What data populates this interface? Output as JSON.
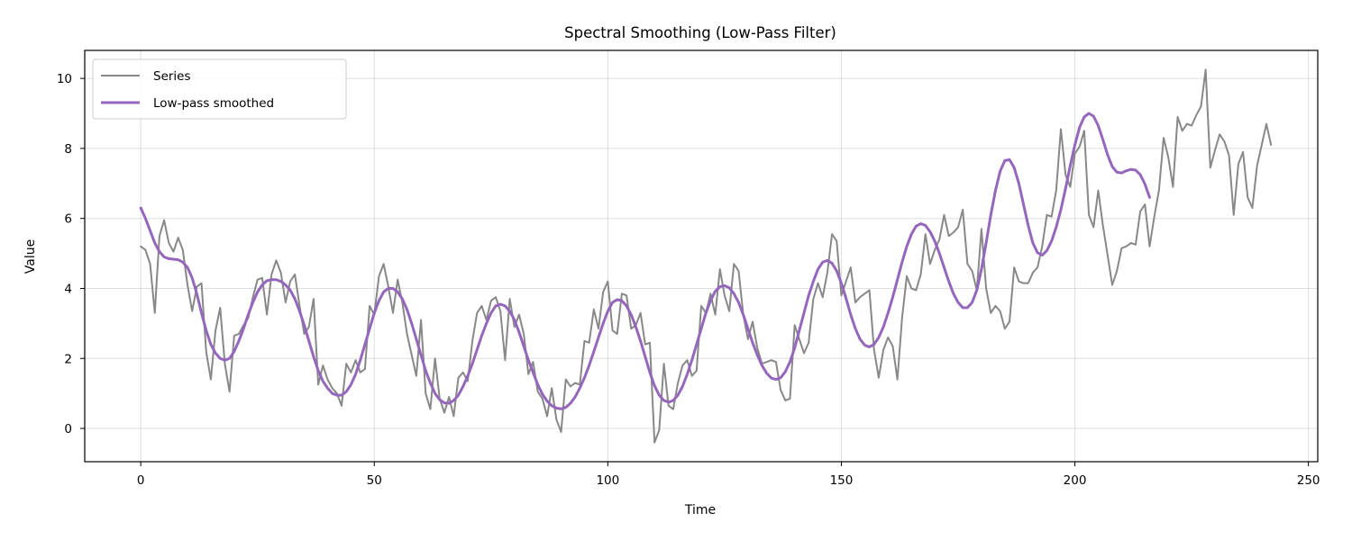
{
  "chart_data": {
    "type": "line",
    "title": "Spectral Smoothing (Low-Pass Filter)",
    "xlabel": "Time",
    "ylabel": "Value",
    "xlim": [
      -12,
      252
    ],
    "ylim": [
      -0.95,
      10.8
    ],
    "xticks": [
      0,
      50,
      100,
      150,
      200,
      250
    ],
    "yticks": [
      0,
      2,
      4,
      6,
      8,
      10
    ],
    "grid": true,
    "legend_position": "top-left",
    "series": [
      {
        "name": "Series",
        "color": "#888888",
        "x_start": 0,
        "x_step": 1,
        "values": [
          5.2,
          5.1,
          4.7,
          3.3,
          5.5,
          5.95,
          5.3,
          5.05,
          5.45,
          5.1,
          4.1,
          3.35,
          4.05,
          4.15,
          2.2,
          1.4,
          2.8,
          3.45,
          1.85,
          1.05,
          2.65,
          2.7,
          2.95,
          3.15,
          3.75,
          4.25,
          4.3,
          3.25,
          4.4,
          4.8,
          4.45,
          3.6,
          4.2,
          4.4,
          3.5,
          2.7,
          2.9,
          3.7,
          1.25,
          1.8,
          1.4,
          1.15,
          1.0,
          0.65,
          1.85,
          1.6,
          1.95,
          1.6,
          1.7,
          3.5,
          3.25,
          4.35,
          4.7,
          4.05,
          3.3,
          4.25,
          3.6,
          2.7,
          2.1,
          1.5,
          3.1,
          1.0,
          0.55,
          2.0,
          0.85,
          0.45,
          0.9,
          0.35,
          1.45,
          1.6,
          1.35,
          2.5,
          3.3,
          3.5,
          3.1,
          3.65,
          3.75,
          3.35,
          1.95,
          3.7,
          2.9,
          3.25,
          2.7,
          1.55,
          1.9,
          1.05,
          0.85,
          0.35,
          1.15,
          0.25,
          -0.1,
          1.4,
          1.2,
          1.3,
          1.25,
          2.5,
          2.45,
          3.4,
          2.85,
          3.9,
          4.2,
          2.8,
          2.7,
          3.85,
          3.8,
          2.85,
          2.95,
          3.3,
          2.4,
          2.45,
          -0.4,
          -0.05,
          1.85,
          0.65,
          0.55,
          1.3,
          1.8,
          1.95,
          1.5,
          1.65,
          3.5,
          3.3,
          3.85,
          3.25,
          4.55,
          3.8,
          3.35,
          4.7,
          4.5,
          3.25,
          2.55,
          3.05,
          2.3,
          1.85,
          1.9,
          1.95,
          1.9,
          1.1,
          0.8,
          0.85,
          2.95,
          2.55,
          2.15,
          2.45,
          3.7,
          4.15,
          3.75,
          4.45,
          5.55,
          5.35,
          3.8,
          4.2,
          4.6,
          3.6,
          3.75,
          3.85,
          3.95,
          2.25,
          1.45,
          2.25,
          2.6,
          2.35,
          1.4,
          3.15,
          4.35,
          4.0,
          3.95,
          4.4,
          5.55,
          4.7,
          5.1,
          5.4,
          6.1,
          5.5,
          5.6,
          5.75,
          6.25,
          4.7,
          4.5,
          3.95,
          5.7,
          4.0,
          3.3,
          3.5,
          3.35,
          2.85,
          3.05,
          4.6,
          4.2,
          4.15,
          4.15,
          4.45,
          4.6,
          5.2,
          6.1,
          6.05,
          6.8,
          8.55,
          7.25,
          6.9,
          7.85,
          8.05,
          8.5,
          6.1,
          5.75,
          6.8,
          5.8,
          4.95,
          4.1,
          4.5,
          5.15,
          5.2,
          5.3,
          5.25,
          6.2,
          6.4,
          5.2,
          6.05,
          6.8,
          8.3,
          7.75,
          6.9,
          8.9,
          8.5,
          8.7,
          8.65,
          8.95,
          9.2,
          10.25,
          7.45,
          7.95,
          8.4,
          8.2,
          7.8,
          6.1,
          7.55,
          7.9,
          6.6,
          6.3,
          7.5,
          8.1,
          8.7,
          8.1
        ]
      },
      {
        "name": "Low-pass smoothed",
        "color": "#9467bd",
        "points": [
          [
            0,
            6.3
          ],
          [
            1,
            6.0
          ],
          [
            2,
            5.65
          ],
          [
            3,
            5.3
          ],
          [
            4,
            5.05
          ],
          [
            5,
            4.9
          ],
          [
            6,
            4.85
          ],
          [
            8,
            4.82
          ],
          [
            9,
            4.75
          ],
          [
            10,
            4.6
          ],
          [
            11,
            4.3
          ],
          [
            12,
            3.85
          ],
          [
            13,
            3.3
          ],
          [
            14,
            2.8
          ],
          [
            15,
            2.4
          ],
          [
            16,
            2.15
          ],
          [
            17,
            2.0
          ],
          [
            18,
            1.95
          ],
          [
            19,
            2.0
          ],
          [
            20,
            2.2
          ],
          [
            21,
            2.5
          ],
          [
            22,
            2.85
          ],
          [
            23,
            3.25
          ],
          [
            24,
            3.6
          ],
          [
            25,
            3.9
          ],
          [
            26,
            4.1
          ],
          [
            27,
            4.22
          ],
          [
            28,
            4.25
          ],
          [
            29,
            4.25
          ],
          [
            30,
            4.2
          ],
          [
            31,
            4.1
          ],
          [
            32,
            3.95
          ],
          [
            33,
            3.7
          ],
          [
            34,
            3.35
          ],
          [
            35,
            2.95
          ],
          [
            36,
            2.5
          ],
          [
            37,
            2.05
          ],
          [
            38,
            1.65
          ],
          [
            39,
            1.35
          ],
          [
            40,
            1.15
          ],
          [
            41,
            1.0
          ],
          [
            42,
            0.95
          ],
          [
            43,
            0.95
          ],
          [
            44,
            1.05
          ],
          [
            45,
            1.25
          ],
          [
            46,
            1.55
          ],
          [
            47,
            1.95
          ],
          [
            48,
            2.4
          ],
          [
            49,
            2.85
          ],
          [
            50,
            3.3
          ],
          [
            51,
            3.65
          ],
          [
            52,
            3.9
          ],
          [
            53,
            4.0
          ],
          [
            54,
            4.0
          ],
          [
            55,
            3.9
          ],
          [
            56,
            3.7
          ],
          [
            57,
            3.4
          ],
          [
            58,
            3.0
          ],
          [
            59,
            2.55
          ],
          [
            60,
            2.1
          ],
          [
            61,
            1.65
          ],
          [
            62,
            1.3
          ],
          [
            63,
            1.0
          ],
          [
            64,
            0.82
          ],
          [
            65,
            0.73
          ],
          [
            66,
            0.72
          ],
          [
            67,
            0.8
          ],
          [
            68,
            0.95
          ],
          [
            69,
            1.2
          ],
          [
            70,
            1.5
          ],
          [
            71,
            1.85
          ],
          [
            72,
            2.25
          ],
          [
            73,
            2.65
          ],
          [
            74,
            3.0
          ],
          [
            75,
            3.3
          ],
          [
            76,
            3.5
          ],
          [
            77,
            3.55
          ],
          [
            78,
            3.5
          ],
          [
            79,
            3.35
          ],
          [
            80,
            3.1
          ],
          [
            81,
            2.75
          ],
          [
            82,
            2.35
          ],
          [
            83,
            1.95
          ],
          [
            84,
            1.6
          ],
          [
            85,
            1.25
          ],
          [
            86,
            0.98
          ],
          [
            87,
            0.78
          ],
          [
            88,
            0.65
          ],
          [
            89,
            0.58
          ],
          [
            90,
            0.56
          ],
          [
            91,
            0.6
          ],
          [
            92,
            0.72
          ],
          [
            93,
            0.9
          ],
          [
            94,
            1.15
          ],
          [
            95,
            1.45
          ],
          [
            96,
            1.8
          ],
          [
            97,
            2.2
          ],
          [
            98,
            2.6
          ],
          [
            99,
            3.0
          ],
          [
            100,
            3.35
          ],
          [
            101,
            3.6
          ],
          [
            102,
            3.68
          ],
          [
            103,
            3.65
          ],
          [
            104,
            3.5
          ],
          [
            105,
            3.25
          ],
          [
            106,
            2.9
          ],
          [
            107,
            2.5
          ],
          [
            108,
            2.05
          ],
          [
            109,
            1.6
          ],
          [
            110,
            1.22
          ],
          [
            111,
            0.95
          ],
          [
            112,
            0.8
          ],
          [
            113,
            0.75
          ],
          [
            114,
            0.8
          ],
          [
            115,
            0.95
          ],
          [
            116,
            1.2
          ],
          [
            117,
            1.55
          ],
          [
            118,
            1.95
          ],
          [
            119,
            2.4
          ],
          [
            120,
            2.85
          ],
          [
            121,
            3.3
          ],
          [
            122,
            3.65
          ],
          [
            123,
            3.92
          ],
          [
            124,
            4.05
          ],
          [
            125,
            4.08
          ],
          [
            126,
            4.02
          ],
          [
            127,
            3.85
          ],
          [
            128,
            3.6
          ],
          [
            129,
            3.25
          ],
          [
            130,
            2.85
          ],
          [
            131,
            2.45
          ],
          [
            132,
            2.1
          ],
          [
            133,
            1.8
          ],
          [
            134,
            1.58
          ],
          [
            135,
            1.44
          ],
          [
            136,
            1.4
          ],
          [
            137,
            1.45
          ],
          [
            138,
            1.62
          ],
          [
            139,
            1.9
          ],
          [
            140,
            2.3
          ],
          [
            141,
            2.8
          ],
          [
            142,
            3.3
          ],
          [
            143,
            3.8
          ],
          [
            144,
            4.2
          ],
          [
            145,
            4.55
          ],
          [
            146,
            4.75
          ],
          [
            147,
            4.8
          ],
          [
            148,
            4.72
          ],
          [
            149,
            4.5
          ],
          [
            150,
            4.15
          ],
          [
            151,
            3.72
          ],
          [
            152,
            3.25
          ],
          [
            153,
            2.85
          ],
          [
            154,
            2.55
          ],
          [
            155,
            2.38
          ],
          [
            156,
            2.33
          ],
          [
            157,
            2.4
          ],
          [
            158,
            2.6
          ],
          [
            159,
            2.9
          ],
          [
            160,
            3.3
          ],
          [
            161,
            3.75
          ],
          [
            162,
            4.25
          ],
          [
            163,
            4.75
          ],
          [
            164,
            5.2
          ],
          [
            165,
            5.55
          ],
          [
            166,
            5.78
          ],
          [
            167,
            5.85
          ],
          [
            168,
            5.8
          ],
          [
            169,
            5.62
          ],
          [
            170,
            5.35
          ],
          [
            171,
            5.0
          ],
          [
            172,
            4.6
          ],
          [
            173,
            4.2
          ],
          [
            174,
            3.85
          ],
          [
            175,
            3.6
          ],
          [
            176,
            3.45
          ],
          [
            177,
            3.45
          ],
          [
            178,
            3.6
          ],
          [
            179,
            3.95
          ],
          [
            180,
            4.55
          ],
          [
            181,
            5.3
          ],
          [
            182,
            6.1
          ],
          [
            183,
            6.8
          ],
          [
            184,
            7.35
          ],
          [
            185,
            7.65
          ],
          [
            186,
            7.68
          ],
          [
            187,
            7.45
          ],
          [
            188,
            7.0
          ],
          [
            189,
            6.4
          ],
          [
            190,
            5.8
          ],
          [
            191,
            5.3
          ],
          [
            192,
            5.02
          ],
          [
            193,
            4.95
          ],
          [
            194,
            5.08
          ],
          [
            195,
            5.35
          ],
          [
            196,
            5.75
          ],
          [
            197,
            6.25
          ],
          [
            198,
            6.85
          ],
          [
            199,
            7.5
          ],
          [
            200,
            8.1
          ],
          [
            201,
            8.6
          ],
          [
            202,
            8.9
          ],
          [
            203,
            9.0
          ],
          [
            204,
            8.92
          ],
          [
            205,
            8.65
          ],
          [
            206,
            8.25
          ],
          [
            207,
            7.82
          ],
          [
            208,
            7.48
          ],
          [
            209,
            7.32
          ],
          [
            210,
            7.3
          ],
          [
            211,
            7.36
          ],
          [
            212,
            7.4
          ],
          [
            213,
            7.38
          ],
          [
            214,
            7.25
          ],
          [
            215,
            6.98
          ],
          [
            216,
            6.6
          ]
        ]
      }
    ]
  }
}
